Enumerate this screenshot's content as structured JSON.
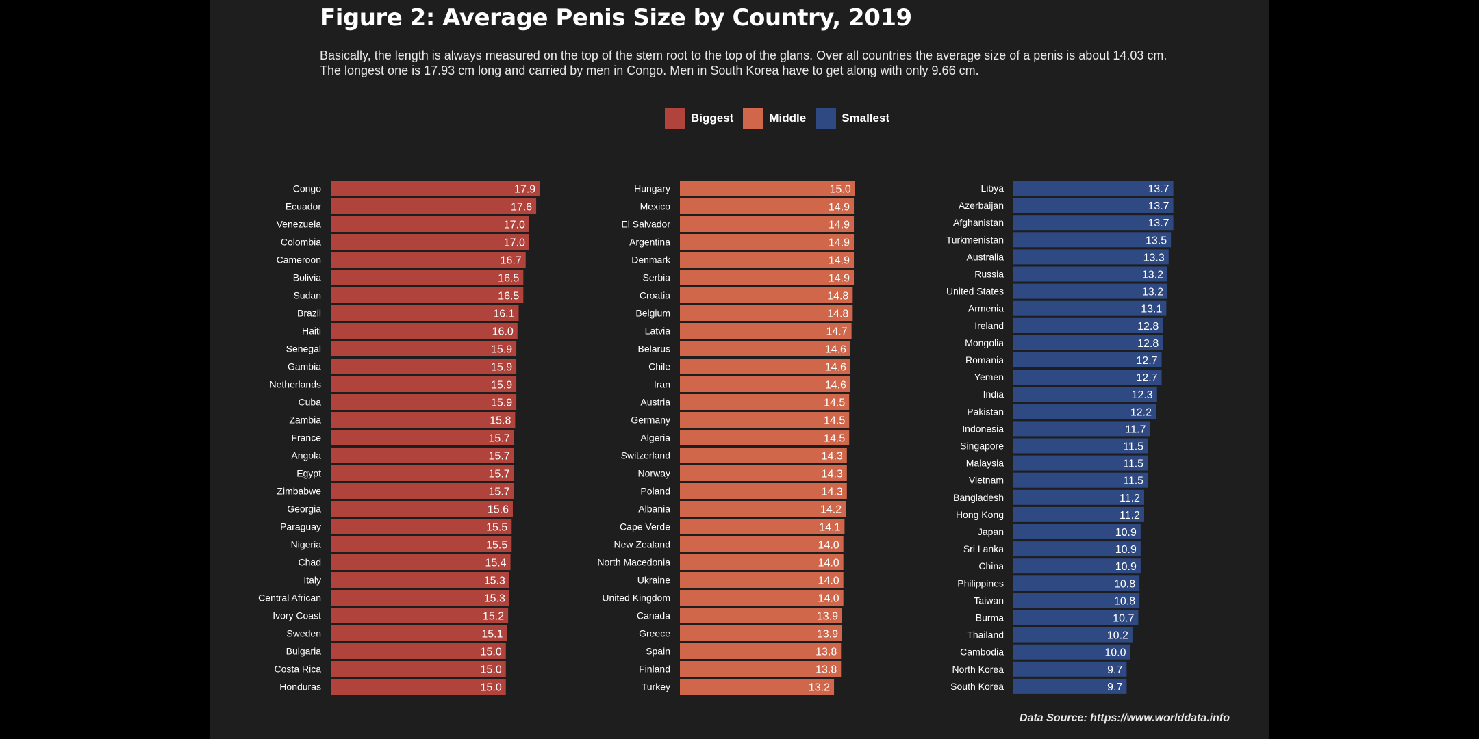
{
  "colors": {
    "background": "#1e1e1e",
    "outer": "#000000",
    "biggest": "#b0433b",
    "middle": "#d0674a",
    "smallest": "#2f4a83",
    "text": "#ffffff"
  },
  "chart_data": {
    "type": "bar",
    "orientation": "horizontal",
    "title": "Figure 2: Average Penis Size by Country, 2019",
    "subtitle": "Basically, the length is always measured on the top of the stem root to the top of the glans. Over all countries the average size of a penis is about 14.03 cm. The longest one is 17.93 cm long and carried by men in Congo. Men in South Korea have to get along with only 9.66 cm.",
    "legend": {
      "placement": "top-center",
      "entries": [
        {
          "name": "Biggest",
          "color": "#b0433b"
        },
        {
          "name": "Middle",
          "color": "#d0674a"
        },
        {
          "name": "Smallest",
          "color": "#2f4a83"
        }
      ]
    },
    "source": "Data Source: https://www.worlddata.info",
    "grid": false,
    "panels": [
      {
        "name": "Biggest",
        "color": "#b0433b",
        "categories": [
          "Congo",
          "Ecuador",
          "Venezuela",
          "Colombia",
          "Cameroon",
          "Bolivia",
          "Sudan",
          "Brazil",
          "Haiti",
          "Senegal",
          "Gambia",
          "Netherlands",
          "Cuba",
          "Zambia",
          "France",
          "Angola",
          "Egypt",
          "Zimbabwe",
          "Georgia",
          "Paraguay",
          "Nigeria",
          "Chad",
          "Italy",
          "Central African",
          "Ivory Coast",
          "Sweden",
          "Bulgaria",
          "Costa Rica",
          "Honduras"
        ],
        "values": [
          17.9,
          17.6,
          17.0,
          17.0,
          16.7,
          16.5,
          16.5,
          16.1,
          16.0,
          15.9,
          15.9,
          15.9,
          15.9,
          15.8,
          15.7,
          15.7,
          15.7,
          15.7,
          15.6,
          15.5,
          15.5,
          15.4,
          15.3,
          15.3,
          15.2,
          15.1,
          15.0,
          15.0,
          15.0
        ],
        "value_labels": [
          "17.9",
          "17.6",
          "17.0",
          "17.0",
          "16.7",
          "16.5",
          "16.5",
          "16.1",
          "16.0",
          "15.9",
          "15.9",
          "15.9",
          "15.9",
          "15.8",
          "15.7",
          "15.7",
          "15.7",
          "15.7",
          "15.6",
          "15.5",
          "15.5",
          "15.4",
          "15.3",
          "15.3",
          "15.2",
          "15.1",
          "15.0",
          "15.0",
          "15.0"
        ]
      },
      {
        "name": "Middle",
        "color": "#d0674a",
        "categories": [
          "Hungary",
          "Mexico",
          "El Salvador",
          "Argentina",
          "Denmark",
          "Serbia",
          "Croatia",
          "Belgium",
          "Latvia",
          "Belarus",
          "Chile",
          "Iran",
          "Austria",
          "Germany",
          "Algeria",
          "Switzerland",
          "Norway",
          "Poland",
          "Albania",
          "Cape Verde",
          "New Zealand",
          "North Macedonia",
          "Ukraine",
          "United Kingdom",
          "Canada",
          "Greece",
          "Spain",
          "Finland",
          "Turkey"
        ],
        "values": [
          15.0,
          14.9,
          14.9,
          14.9,
          14.9,
          14.9,
          14.8,
          14.8,
          14.7,
          14.6,
          14.6,
          14.6,
          14.5,
          14.5,
          14.5,
          14.3,
          14.3,
          14.3,
          14.2,
          14.1,
          14.0,
          14.0,
          14.0,
          14.0,
          13.9,
          13.9,
          13.8,
          13.8,
          13.2
        ],
        "value_labels": [
          "15.0",
          "14.9",
          "14.9",
          "14.9",
          "14.9",
          "14.9",
          "14.8",
          "14.8",
          "14.7",
          "14.6",
          "14.6",
          "14.6",
          "14.5",
          "14.5",
          "14.5",
          "14.3",
          "14.3",
          "14.3",
          "14.2",
          "14.1",
          "14.0",
          "14.0",
          "14.0",
          "14.0",
          "13.9",
          "13.9",
          "13.8",
          "13.8",
          "13.2"
        ]
      },
      {
        "name": "Smallest",
        "color": "#2f4a83",
        "categories": [
          "Libya",
          "Azerbaijan",
          "Afghanistan",
          "Turkmenistan",
          "Australia",
          "Russia",
          "United States",
          "Armenia",
          "Ireland",
          "Mongolia",
          "Romania",
          "Yemen",
          "India",
          "Pakistan",
          "Indonesia",
          "Singapore",
          "Malaysia",
          "Vietnam",
          "Bangladesh",
          "Hong Kong",
          "Japan",
          "Sri Lanka",
          "China",
          "Philippines",
          "Taiwan",
          "Burma",
          "Thailand",
          "Cambodia",
          "North Korea",
          "South Korea"
        ],
        "values": [
          13.7,
          13.7,
          13.7,
          13.5,
          13.3,
          13.2,
          13.2,
          13.1,
          12.8,
          12.8,
          12.7,
          12.7,
          12.3,
          12.2,
          11.7,
          11.5,
          11.5,
          11.5,
          11.2,
          11.2,
          10.9,
          10.9,
          10.9,
          10.8,
          10.8,
          10.7,
          10.2,
          10.0,
          9.7,
          9.7
        ],
        "value_labels": [
          "13.7",
          "13.7",
          "13.7",
          "13.5",
          "13.3",
          "13.2",
          "13.2",
          "13.1",
          "12.8",
          "12.8",
          "12.7",
          "12.7",
          "12.3",
          "12.2",
          "11.7",
          "11.5",
          "11.5",
          "11.5",
          "11.2",
          "11.2",
          "10.9",
          "10.9",
          "10.9",
          "10.8",
          "10.8",
          "10.7",
          "10.2",
          "10.0",
          "9.7",
          "9.7"
        ]
      }
    ]
  }
}
